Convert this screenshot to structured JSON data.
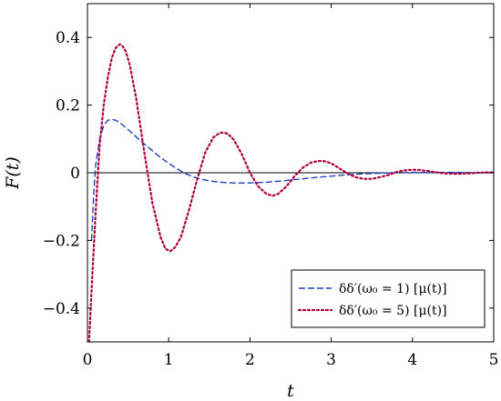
{
  "chart_data": {
    "type": "line",
    "title": "",
    "xlabel": "t",
    "ylabel": "F(t)",
    "xlim": [
      0,
      5
    ],
    "ylim": [
      -0.5,
      0.5
    ],
    "xticks": [
      0,
      1,
      2,
      3,
      4,
      5
    ],
    "xtick_labels": [
      "0",
      "1",
      "2",
      "3",
      "4",
      "5"
    ],
    "yticks": [
      -0.4,
      -0.2,
      0,
      0.2,
      0.4
    ],
    "ytick_labels": [
      "−0.4",
      "−0.2",
      "0",
      "0.2",
      "0.4"
    ],
    "grid": false,
    "zero_line": true,
    "legend_position": "bottom-right",
    "series": [
      {
        "name": "δδ′(ω₀ = 1) [μ(t)]",
        "color": "#1f3fbf",
        "style": "dashed",
        "x": [
          0.05,
          0.08,
          0.1,
          0.15,
          0.2,
          0.25,
          0.3,
          0.35,
          0.4,
          0.5,
          0.6,
          0.7,
          0.8,
          0.9,
          1.0,
          1.1,
          1.2,
          1.3,
          1.4,
          1.5,
          1.6,
          1.7,
          1.8,
          2.0,
          2.2,
          2.4,
          2.6,
          2.8,
          3.0,
          3.2,
          3.4,
          3.6,
          3.8,
          4.0,
          4.2,
          4.4,
          4.6,
          4.8,
          5.0
        ],
        "y": [
          -0.2,
          -0.05,
          0.02,
          0.1,
          0.14,
          0.155,
          0.158,
          0.155,
          0.148,
          0.128,
          0.106,
          0.085,
          0.065,
          0.045,
          0.028,
          0.012,
          -0.002,
          -0.012,
          -0.019,
          -0.024,
          -0.027,
          -0.029,
          -0.03,
          -0.03,
          -0.028,
          -0.024,
          -0.019,
          -0.014,
          -0.01,
          -0.006,
          -0.003,
          -0.001,
          0.0,
          0.001,
          0.001,
          0.001,
          0.001,
          0.0,
          0.0
        ]
      },
      {
        "name": "δδ′(ω₀ = 5) [μ(t)]",
        "color": "#b0003a",
        "style": "dotted",
        "x": [
          0.02,
          0.05,
          0.1,
          0.15,
          0.2,
          0.25,
          0.3,
          0.35,
          0.4,
          0.43,
          0.47,
          0.52,
          0.6,
          0.7,
          0.8,
          0.9,
          0.96,
          1.02,
          1.08,
          1.15,
          1.25,
          1.35,
          1.45,
          1.55,
          1.63,
          1.68,
          1.73,
          1.8,
          1.9,
          2.0,
          2.1,
          2.2,
          2.28,
          2.35,
          2.45,
          2.55,
          2.65,
          2.75,
          2.85,
          2.92,
          3.0,
          3.1,
          3.2,
          3.3,
          3.4,
          3.5,
          3.58,
          3.7,
          3.8,
          3.9,
          4.0,
          4.1,
          4.2,
          4.3,
          4.4,
          4.5,
          4.6,
          4.7,
          4.8,
          4.9,
          5.0
        ],
        "y": [
          -0.5,
          -0.35,
          -0.12,
          0.08,
          0.2,
          0.28,
          0.34,
          0.37,
          0.38,
          0.375,
          0.36,
          0.32,
          0.22,
          0.06,
          -0.09,
          -0.19,
          -0.225,
          -0.232,
          -0.22,
          -0.19,
          -0.11,
          -0.02,
          0.06,
          0.105,
          0.118,
          0.119,
          0.115,
          0.098,
          0.055,
          0.0,
          -0.04,
          -0.062,
          -0.068,
          -0.062,
          -0.04,
          -0.01,
          0.015,
          0.03,
          0.035,
          0.034,
          0.028,
          0.013,
          -0.002,
          -0.013,
          -0.018,
          -0.018,
          -0.014,
          -0.007,
          0.002,
          0.007,
          0.009,
          0.008,
          0.005,
          0.001,
          -0.002,
          -0.003,
          -0.003,
          -0.002,
          0.0,
          0.001,
          0.001
        ]
      }
    ]
  }
}
